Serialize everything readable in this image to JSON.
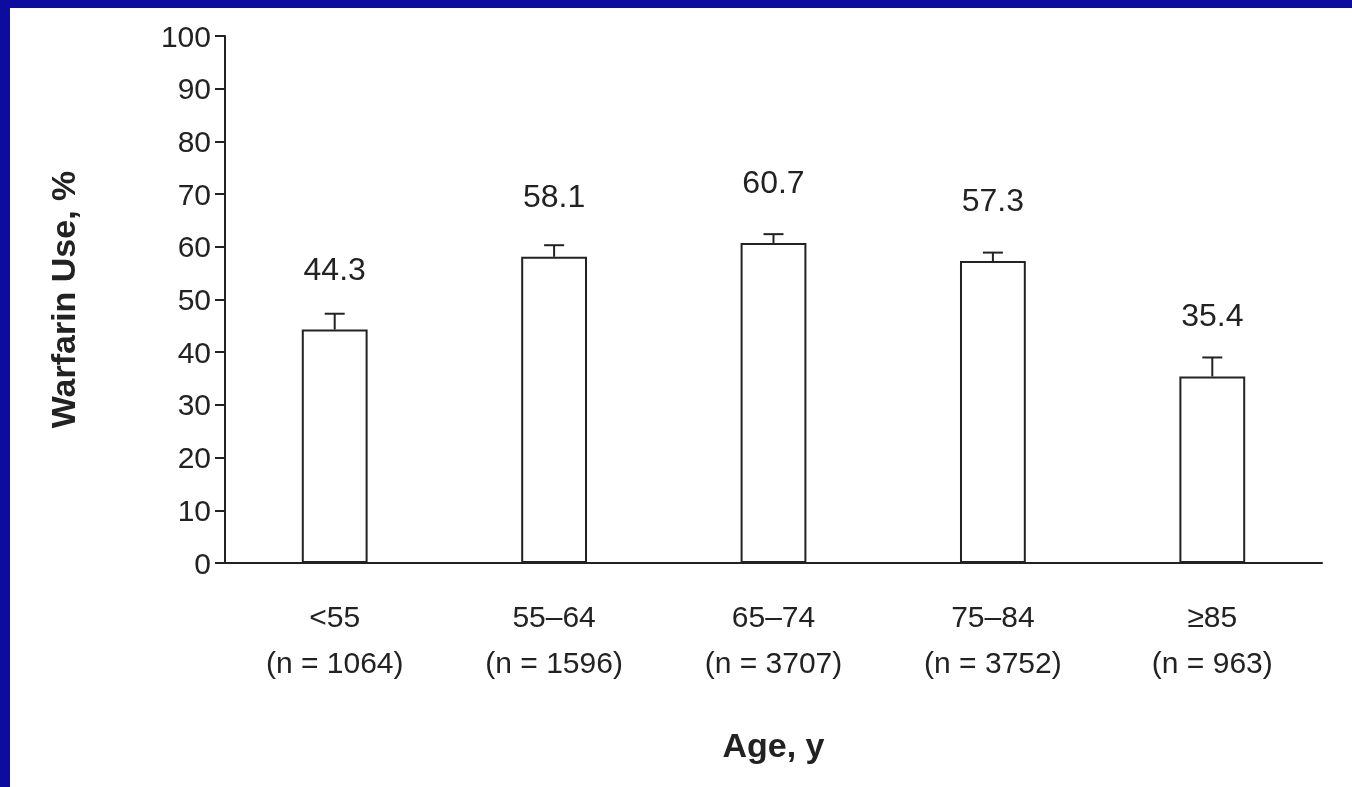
{
  "chart_data": {
    "type": "bar",
    "xlabel": "Age, y",
    "ylabel": "Warfarin Use, %",
    "categories": [
      "<55\n(n = 1064)",
      "55–64\n(n = 1596)",
      "65–74\n(n = 3707)",
      "75–84\n(n = 3752)",
      "≥85\n(n = 963)"
    ],
    "values": [
      44.3,
      58.1,
      60.7,
      57.3,
      35.4
    ],
    "errors": [
      [
        44.3,
        47.3
      ],
      [
        58.1,
        60.3
      ],
      [
        60.7,
        62.4
      ],
      [
        57.3,
        58.9
      ],
      [
        35.4,
        39.0
      ]
    ],
    "color": "#ffffff",
    "ylim": [
      0,
      100
    ],
    "yticks": [
      0,
      10,
      20,
      30,
      40,
      50,
      60,
      70,
      80,
      90,
      100
    ],
    "data_labels": true,
    "grid": false
  }
}
